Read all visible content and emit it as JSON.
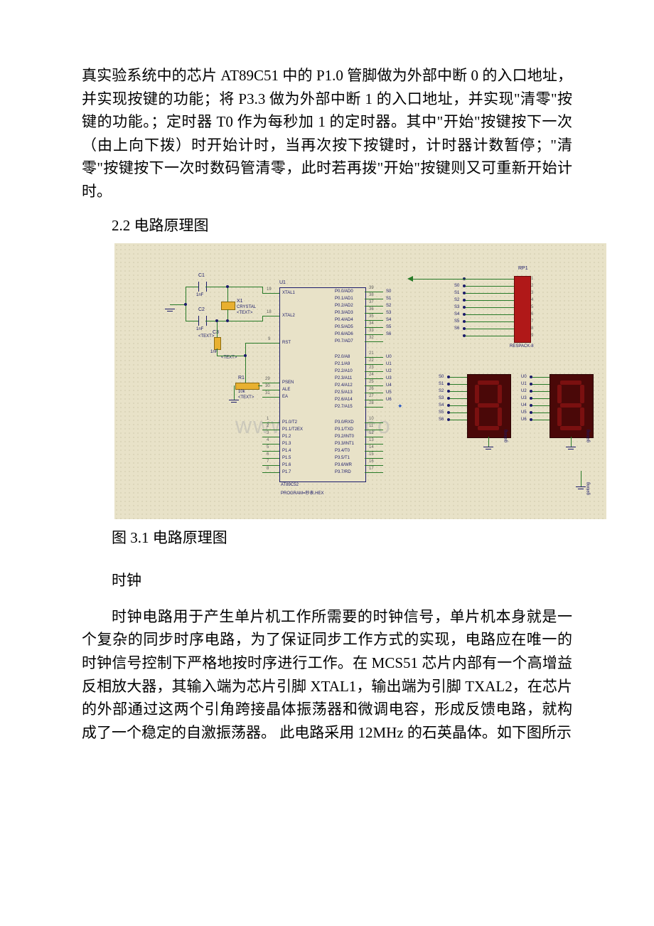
{
  "paragraphs": {
    "p1": "真实验系统中的芯片 AT89C51 中的 P1.0 管脚做为外部中断 0 的入口地址，并实现按键的功能；将 P3.3 做为外部中断 1 的入口地址，并实现\"清零\"按键的功能。；定时器 T0 作为每秒加 1 的定时器。其中\"开始\"按键按下一次（由上向下拨）时开始计时，当再次按下按键时，计时器计数暂停；\"清零\"按键按下一次时数码管清零，此时若再拨\"开始\"按键则又可重新开始计时。",
    "h1": "2.2 电路原理图",
    "figcap": "图 3.1 电路原理图",
    "sub1": "时钟",
    "p2": "时钟电路用于产生单片机工作所需要的时钟信号，单片机本身就是一个复杂的同步时序电路，为了保证同步工作方式的实现，电路应在唯一的时钟信号控制下严格地按时序进行工作。在 MCS51 芯片内部有一个高增益反相放大器，其输入端为芯片引脚 XTAL1，输出端为引脚 TXAL2，在芯片的外部通过这两个引角跨接晶体振荡器和微调电容，形成反馈电路，就构成了一个稳定的自激振荡器。 此电路采用 12MHz 的石英晶体。如下图所示"
  },
  "circuit": {
    "refs": {
      "c1": "C1",
      "c1v": "1nF",
      "c2": "C2",
      "c2v": "1nF",
      "c3": "C3",
      "c3v": "1nF",
      "x1": "X1",
      "x1t": "CRYSTAL",
      "r1": "R1",
      "r1v": "10k",
      "u1": "U1",
      "rp1": "RP1",
      "respack_t": "RESPACK-8",
      "chip_model": "AT89C52",
      "chip_prog": "PROGRAM=秒表.HEX",
      "textph": "<TEXT>"
    },
    "pins_left": [
      {
        "n": "19",
        "l": "XTAL1"
      },
      {
        "n": "18",
        "l": "XTAL2"
      },
      {
        "n": "9",
        "l": "RST"
      },
      {
        "n": "29",
        "l": "PSEN"
      },
      {
        "n": "30",
        "l": "ALE"
      },
      {
        "n": "31",
        "l": "EA"
      }
    ],
    "pins_p0": [
      {
        "n": "39",
        "l": "P0.0/AD0",
        "net": "S0"
      },
      {
        "n": "38",
        "l": "P0.1/AD1",
        "net": "S1"
      },
      {
        "n": "37",
        "l": "P0.2/AD2",
        "net": "S2"
      },
      {
        "n": "36",
        "l": "P0.3/AD3",
        "net": "S3"
      },
      {
        "n": "35",
        "l": "P0.4/AD4",
        "net": "S4"
      },
      {
        "n": "34",
        "l": "P0.5/AD5",
        "net": "S5"
      },
      {
        "n": "33",
        "l": "P0.6/AD6",
        "net": "S6"
      },
      {
        "n": "32",
        "l": "P0.7/AD7",
        "net": ""
      }
    ],
    "pins_p2": [
      {
        "n": "21",
        "l": "P2.0/A8",
        "net": "U0"
      },
      {
        "n": "22",
        "l": "P2.1/A9",
        "net": "U1"
      },
      {
        "n": "23",
        "l": "P2.2/A10",
        "net": "U2"
      },
      {
        "n": "24",
        "l": "P2.3/A11",
        "net": "U3"
      },
      {
        "n": "25",
        "l": "P2.4/A12",
        "net": "U4"
      },
      {
        "n": "26",
        "l": "P2.5/A13",
        "net": "U5"
      },
      {
        "n": "27",
        "l": "P2.6/A14",
        "net": "U6"
      },
      {
        "n": "28",
        "l": "P2.7/A15",
        "net": ""
      }
    ],
    "pins_p1": [
      {
        "n": "1",
        "l": "P1.0/T2"
      },
      {
        "n": "2",
        "l": "P1.1/T2EX"
      },
      {
        "n": "3",
        "l": "P1.2"
      },
      {
        "n": "4",
        "l": "P1.3"
      },
      {
        "n": "5",
        "l": "P1.4"
      },
      {
        "n": "6",
        "l": "P1.5"
      },
      {
        "n": "7",
        "l": "P1.6"
      },
      {
        "n": "8",
        "l": "P1.7"
      }
    ],
    "pins_p3": [
      {
        "n": "10",
        "l": "P3.0/RXD"
      },
      {
        "n": "11",
        "l": "P3.1/TXD"
      },
      {
        "n": "12",
        "l": "P3.2/INT0"
      },
      {
        "n": "13",
        "l": "P3.3/INT1"
      },
      {
        "n": "14",
        "l": "P3.4/T0"
      },
      {
        "n": "15",
        "l": "P3.5/T1"
      },
      {
        "n": "16",
        "l": "P3.6/WR"
      },
      {
        "n": "17",
        "l": "P3.7/RD"
      }
    ],
    "respack_pins": [
      "1",
      "2",
      "3",
      "4",
      "5",
      "6",
      "7",
      "8",
      "9"
    ],
    "respack_nets": [
      "",
      "S0",
      "S1",
      "S2",
      "S3",
      "S4",
      "S5",
      "S6",
      ""
    ],
    "seg_left_nets": [
      "S0",
      "S1",
      "S2",
      "S3",
      "S4",
      "S5",
      "S6"
    ],
    "seg_right_nets": [
      "U0",
      "U1",
      "U2",
      "U3",
      "U4",
      "U5",
      "U6"
    ],
    "gnd_label": "gelong",
    "wm": "www.bd    cx.co"
  }
}
